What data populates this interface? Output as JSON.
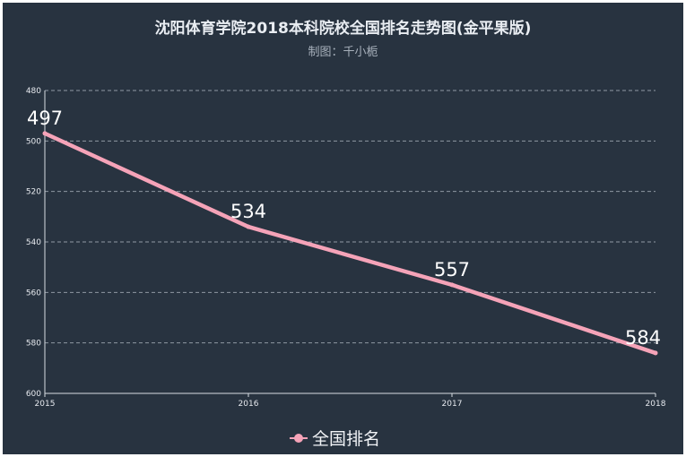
{
  "title": "沈阳体育学院2018本科院校全国排名走势图(金平果版)",
  "subtitle": "制图：千小栀",
  "colors": {
    "background": "#283340",
    "series": "#f5a3b8",
    "grid": "#8f98a3",
    "axis": "#d7dce2",
    "text": "#e6e9ee"
  },
  "chart_data": {
    "type": "line",
    "title": "沈阳体育学院2018本科院校全国排名走势图(金平果版)",
    "subtitle": "制图：千小栀",
    "x": [
      "2015",
      "2016",
      "2017",
      "2018"
    ],
    "series": [
      {
        "name": "全国排名",
        "values": [
          497,
          534,
          557,
          584
        ],
        "color": "#f5a3b8"
      }
    ],
    "y_ticks": [
      480,
      500,
      520,
      540,
      560,
      580,
      600
    ],
    "ylim": [
      480,
      600
    ],
    "y_inverted": true,
    "grid": true,
    "grid_style": "dashed",
    "legend_position": "bottom-center",
    "data_labels": true,
    "xlabel": "",
    "ylabel": ""
  }
}
